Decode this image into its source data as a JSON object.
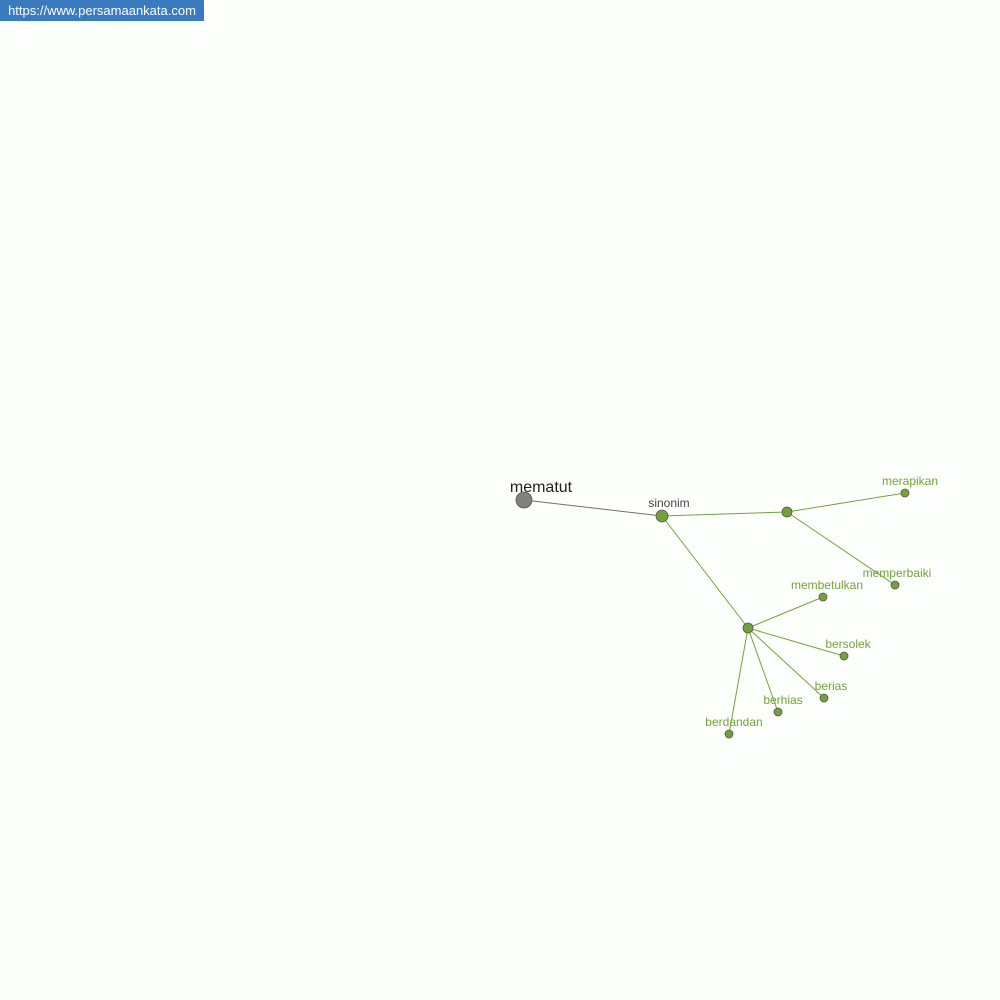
{
  "source_url": "https://www.persamaankata.com",
  "graph": {
    "root": {
      "id": "root",
      "label": "mematut"
    },
    "relation": {
      "id": "rel",
      "label": "sinonim"
    },
    "groups": [
      {
        "id": "g1",
        "label": "",
        "words": [
          {
            "id": "w1",
            "label": "merapikan"
          },
          {
            "id": "w2",
            "label": "memperbaiki"
          }
        ]
      },
      {
        "id": "g2",
        "label": "",
        "words": [
          {
            "id": "w3",
            "label": "membetulkan"
          },
          {
            "id": "w4",
            "label": "bersolek"
          },
          {
            "id": "w5",
            "label": "berias"
          },
          {
            "id": "w6",
            "label": "berhias"
          },
          {
            "id": "w7",
            "label": "berdandan"
          }
        ]
      }
    ],
    "colors": {
      "root": "#808080",
      "accent": "#76a03a",
      "edge_root": "#707070",
      "label_dark": "#222222",
      "label_relation": "#444444"
    }
  }
}
